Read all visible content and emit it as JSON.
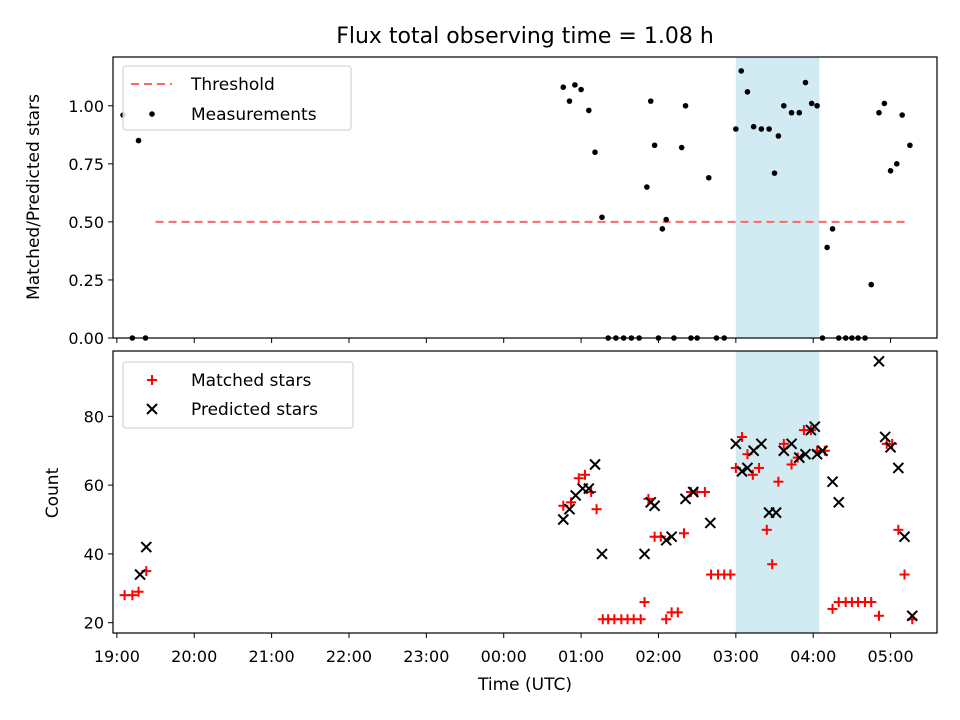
{
  "chart_data": [
    {
      "type": "scatter",
      "title": "Flux total observing time = 1.08 h",
      "ylabel": "Matched/Predicted stars",
      "xlabel": "",
      "xlim_hours": [
        18.95,
        29.6
      ],
      "ylim": [
        0,
        1.21
      ],
      "yticks": [
        0.0,
        0.25,
        0.5,
        0.75,
        1.0
      ],
      "ytick_labels": [
        "0.00",
        "0.25",
        "0.50",
        "0.75",
        "1.00"
      ],
      "legend_position": "upper left",
      "legend": [
        "Threshold",
        "Measurements"
      ],
      "highlight_span_hours": [
        27.0,
        28.08
      ],
      "threshold": {
        "name": "Threshold",
        "y": 0.5,
        "x_range_hours": [
          19.5,
          29.2
        ],
        "color": "#ff6666"
      },
      "measurements": {
        "name": "Measurements",
        "color": "#000000",
        "x_hours": [
          19.08,
          19.2,
          19.28,
          19.37,
          24.77,
          24.85,
          24.92,
          25.0,
          25.1,
          25.18,
          25.27,
          25.35,
          25.45,
          25.55,
          25.65,
          25.75,
          25.85,
          25.9,
          25.95,
          26.0,
          26.05,
          26.1,
          26.2,
          26.3,
          26.35,
          26.42,
          26.5,
          26.65,
          26.75,
          26.85,
          27.0,
          27.07,
          27.15,
          27.23,
          27.33,
          27.43,
          27.5,
          27.55,
          27.62,
          27.72,
          27.82,
          27.9,
          27.98,
          28.05,
          28.12,
          28.18,
          28.25,
          28.33,
          28.42,
          28.5,
          28.58,
          28.67,
          28.75,
          28.85,
          28.92,
          29.0,
          29.08,
          29.15,
          29.25
        ],
        "y": [
          0.96,
          0.0,
          0.85,
          0.0,
          1.08,
          1.02,
          1.09,
          1.07,
          0.98,
          0.8,
          0.52,
          0.0,
          0.0,
          0.0,
          0.0,
          0.0,
          0.65,
          1.02,
          0.83,
          0.0,
          0.47,
          0.51,
          0.0,
          0.82,
          1.0,
          0.0,
          0.0,
          0.69,
          0.0,
          0.0,
          0.9,
          1.15,
          1.06,
          0.91,
          0.9,
          0.9,
          0.71,
          0.87,
          1.0,
          0.97,
          0.97,
          1.1,
          1.01,
          1.0,
          0.0,
          0.39,
          0.47,
          0.0,
          0.0,
          0.0,
          0.0,
          0.0,
          0.23,
          0.97,
          1.01,
          0.72,
          0.75,
          0.96,
          0.83
        ],
        "note_last": ""
      }
    },
    {
      "type": "scatter",
      "title": "",
      "ylabel": "Count",
      "xlabel": "Time (UTC)",
      "xlim_hours": [
        18.95,
        29.6
      ],
      "ylim": [
        17,
        99
      ],
      "yticks": [
        20,
        40,
        60,
        80
      ],
      "ytick_labels": [
        "20",
        "40",
        "60",
        "80"
      ],
      "xticks_hours": [
        19,
        20,
        21,
        22,
        23,
        24,
        25,
        26,
        27,
        28,
        29
      ],
      "xtick_labels": [
        "19:00",
        "20:00",
        "21:00",
        "22:00",
        "23:00",
        "00:00",
        "01:00",
        "02:00",
        "03:00",
        "04:00",
        "05:00"
      ],
      "legend_position": "upper left",
      "legend": [
        "Matched stars",
        "Predicted stars"
      ],
      "highlight_span_hours": [
        27.0,
        28.08
      ],
      "series": [
        {
          "name": "Matched stars",
          "marker": "plus",
          "color": "#ff0000",
          "x_hours": [
            19.1,
            19.2,
            19.28,
            19.38,
            24.77,
            24.87,
            24.97,
            25.05,
            25.13,
            25.2,
            25.28,
            25.35,
            25.43,
            25.52,
            25.6,
            25.68,
            25.77,
            25.82,
            25.87,
            25.95,
            26.03,
            26.1,
            26.17,
            26.25,
            26.33,
            26.42,
            26.5,
            26.6,
            26.68,
            26.77,
            26.85,
            26.93,
            27.0,
            27.08,
            27.15,
            27.22,
            27.3,
            27.4,
            27.47,
            27.55,
            27.62,
            27.72,
            27.8,
            27.88,
            27.97,
            28.05,
            28.15,
            28.25,
            28.33,
            28.42,
            28.5,
            28.58,
            28.67,
            28.75,
            28.85,
            28.95,
            29.02,
            29.1,
            29.18,
            29.28
          ],
          "y": [
            28,
            28,
            29,
            35,
            54,
            55,
            62,
            63,
            58,
            53,
            21,
            21,
            21,
            21,
            21,
            21,
            21,
            26,
            56,
            45,
            45,
            21,
            23,
            23,
            46,
            58,
            58,
            58,
            34,
            34,
            34,
            34,
            65,
            74,
            69,
            63,
            65,
            47,
            37,
            61,
            72,
            66,
            68,
            76,
            76,
            70,
            70,
            24,
            26,
            26,
            26,
            26,
            26,
            26,
            22,
            72,
            72,
            47,
            34,
            21
          ]
        },
        {
          "name": "Predicted stars",
          "marker": "x",
          "color": "#000000",
          "x_hours": [
            19.3,
            19.38,
            24.77,
            24.85,
            24.93,
            25.02,
            25.1,
            25.18,
            25.27,
            25.82,
            25.9,
            25.95,
            26.1,
            26.17,
            26.35,
            26.45,
            26.67,
            27.0,
            27.08,
            27.15,
            27.23,
            27.33,
            27.43,
            27.52,
            27.62,
            27.72,
            27.82,
            27.9,
            27.97,
            28.02,
            28.05,
            28.12,
            28.25,
            28.33,
            28.85,
            28.93,
            29.0,
            29.1,
            29.18,
            29.28
          ],
          "y": [
            34,
            42,
            50,
            53,
            57,
            59,
            59,
            66,
            40,
            40,
            55,
            54,
            44,
            45,
            56,
            58,
            49,
            72,
            64,
            65,
            70,
            72,
            52,
            52,
            70,
            72,
            68,
            69,
            76,
            77,
            69,
            70,
            61,
            55,
            96,
            74,
            71,
            65,
            45,
            22
          ]
        }
      ]
    }
  ]
}
